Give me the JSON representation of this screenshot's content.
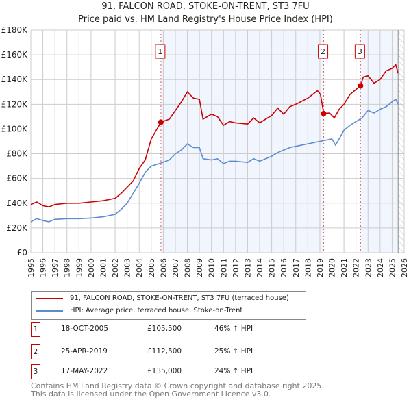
{
  "chart_data": {
    "type": "line",
    "title": "91, FALCON ROAD, STOKE-ON-TRENT, ST3 7FU",
    "subtitle": "Price paid vs. HM Land Registry's House Price Index (HPI)",
    "xlim": [
      1995,
      2026
    ],
    "ylim": [
      0,
      180000
    ],
    "y_ticks": [
      {
        "v": 0,
        "label": "£0"
      },
      {
        "v": 20000,
        "label": "£20K"
      },
      {
        "v": 40000,
        "label": "£40K"
      },
      {
        "v": 60000,
        "label": "£60K"
      },
      {
        "v": 80000,
        "label": "£80K"
      },
      {
        "v": 100000,
        "label": "£100K"
      },
      {
        "v": 120000,
        "label": "£120K"
      },
      {
        "v": 140000,
        "label": "£140K"
      },
      {
        "v": 160000,
        "label": "£160K"
      },
      {
        "v": 180000,
        "label": "£180K"
      }
    ],
    "x_ticks": [
      "1995",
      "1996",
      "1997",
      "1998",
      "1999",
      "2000",
      "2001",
      "2002",
      "2003",
      "2004",
      "2005",
      "2006",
      "2007",
      "2008",
      "2009",
      "2010",
      "2011",
      "2012",
      "2013",
      "2014",
      "2015",
      "2016",
      "2017",
      "2018",
      "2019",
      "2020",
      "2021",
      "2022",
      "2023",
      "2024",
      "2025",
      "2026"
    ],
    "grid": true,
    "series": [
      {
        "name": "91, FALCON ROAD, STOKE-ON-TRENT, ST3 7FU (terraced house)",
        "color": "#cc0000",
        "x": [
          1995,
          1995.5,
          1996,
          1996.5,
          1997,
          1998,
          1999,
          2000,
          2001,
          2002,
          2002.5,
          2003,
          2003.5,
          2004,
          2004.5,
          2005,
          2005.8,
          2006.5,
          2007,
          2007.5,
          2008,
          2008.5,
          2009,
          2009.3,
          2010,
          2010.5,
          2011,
          2011.5,
          2012,
          2013,
          2013.5,
          2014,
          2015,
          2015.5,
          2016,
          2016.5,
          2017,
          2018,
          2018.8,
          2019.05,
          2019.32,
          2019.8,
          2020.2,
          2020.6,
          2021,
          2021.5,
          2022,
          2022.38,
          2022.6,
          2023,
          2023.5,
          2024,
          2024.5,
          2025,
          2025.3,
          2025.5
        ],
        "y": [
          39000,
          41000,
          38000,
          37000,
          39000,
          40000,
          40000,
          41000,
          42000,
          44000,
          48000,
          53000,
          58000,
          68000,
          75000,
          92000,
          105500,
          108000,
          115000,
          122000,
          130000,
          125000,
          124000,
          108000,
          112000,
          110000,
          103000,
          106000,
          105000,
          104000,
          109000,
          105000,
          111000,
          117000,
          112000,
          118000,
          120000,
          125000,
          131000,
          128000,
          112500,
          113000,
          109000,
          116000,
          120000,
          128000,
          132000,
          135000,
          142000,
          143000,
          137000,
          140000,
          147000,
          149000,
          152000,
          145000
        ]
      },
      {
        "name": "HPI: Average price, terraced house, Stoke-on-Trent",
        "color": "#5b8ccf",
        "x": [
          1995,
          1995.5,
          1996,
          1996.5,
          1997,
          1998,
          1999,
          2000,
          2001,
          2002,
          2002.5,
          2003,
          2003.5,
          2004,
          2004.5,
          2005,
          2005.8,
          2006.5,
          2007,
          2007.5,
          2008,
          2008.5,
          2009,
          2009.3,
          2010,
          2010.5,
          2011,
          2011.5,
          2012,
          2013,
          2013.5,
          2014,
          2015,
          2015.5,
          2016,
          2016.5,
          2017,
          2018,
          2019,
          2019.5,
          2020,
          2020.3,
          2020.6,
          2021,
          2021.5,
          2022,
          2022.5,
          2023,
          2023.5,
          2024,
          2024.5,
          2025,
          2025.3,
          2025.5
        ],
        "y": [
          25000,
          27500,
          26000,
          25000,
          27000,
          27500,
          27500,
          28000,
          29000,
          31000,
          35000,
          40000,
          48000,
          56000,
          65000,
          70000,
          72500,
          75000,
          80000,
          83000,
          88000,
          85000,
          85000,
          76000,
          75000,
          76000,
          72000,
          74000,
          74000,
          73000,
          76000,
          74000,
          78000,
          81000,
          83000,
          85000,
          86000,
          88000,
          90000,
          91000,
          92000,
          87000,
          92000,
          99000,
          103000,
          106000,
          109000,
          115000,
          113000,
          116000,
          118000,
          122000,
          124000,
          120000
        ]
      }
    ],
    "sales": [
      {
        "label": "1",
        "date": "18-OCT-2005",
        "x": 2005.8,
        "price": "£105,500",
        "value": 105500,
        "hpi": "46% ↑ HPI"
      },
      {
        "label": "2",
        "date": "25-APR-2019",
        "x": 2019.32,
        "price": "£112,500",
        "value": 112500,
        "hpi": "25% ↑ HPI"
      },
      {
        "label": "3",
        "date": "17-MAY-2022",
        "x": 2022.38,
        "price": "£135,000",
        "value": 135000,
        "hpi": "24% ↑ HPI"
      }
    ],
    "forecast_start": 2025.5
  },
  "footer": [
    "Contains HM Land Registry data © Crown copyright and database right 2025.",
    "This data is licensed under the Open Government Licence v3.0."
  ]
}
